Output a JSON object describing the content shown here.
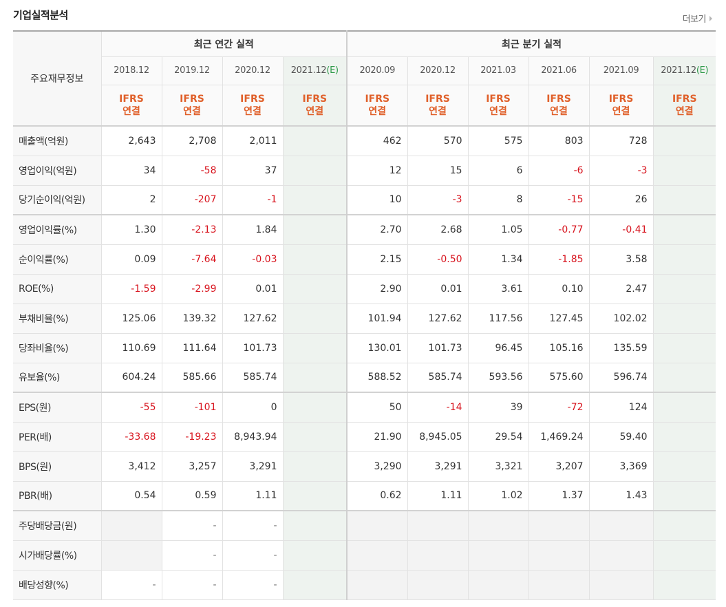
{
  "header": {
    "title": "기업실적분석",
    "more_label": "더보기"
  },
  "table": {
    "row_header": "주요재무정보",
    "groups": {
      "annual": "최근 연간 실적",
      "quarterly": "최근 분기 실적"
    },
    "annual_periods": [
      "2018.12",
      "2019.12",
      "2020.12",
      "2021.12"
    ],
    "annual_estimate_mark": "(E)",
    "quarter_periods": [
      "2020.09",
      "2020.12",
      "2021.03",
      "2021.06",
      "2021.09",
      "2021.12"
    ],
    "quarter_estimate_mark": "(E)",
    "basis_line1": "IFRS",
    "basis_line2": "연결",
    "rows": [
      {
        "label": "매출액(억원)",
        "annual": [
          "2,643",
          "2,708",
          "2,011",
          ""
        ],
        "quarter": [
          "462",
          "570",
          "575",
          "803",
          "728",
          ""
        ]
      },
      {
        "label": "영업이익(억원)",
        "annual": [
          "34",
          "-58",
          "37",
          ""
        ],
        "quarter": [
          "12",
          "15",
          "6",
          "-6",
          "-3",
          ""
        ]
      },
      {
        "label": "당기순이익(억원)",
        "annual": [
          "2",
          "-207",
          "-1",
          ""
        ],
        "quarter": [
          "10",
          "-3",
          "8",
          "-15",
          "26",
          ""
        ]
      },
      {
        "label": "영업이익률(%)",
        "annual": [
          "1.30",
          "-2.13",
          "1.84",
          ""
        ],
        "quarter": [
          "2.70",
          "2.68",
          "1.05",
          "-0.77",
          "-0.41",
          ""
        ]
      },
      {
        "label": "순이익률(%)",
        "annual": [
          "0.09",
          "-7.64",
          "-0.03",
          ""
        ],
        "quarter": [
          "2.15",
          "-0.50",
          "1.34",
          "-1.85",
          "3.58",
          ""
        ]
      },
      {
        "label": "ROE(%)",
        "annual": [
          "-1.59",
          "-2.99",
          "0.01",
          ""
        ],
        "quarter": [
          "2.90",
          "0.01",
          "3.61",
          "0.10",
          "2.47",
          ""
        ]
      },
      {
        "label": "부채비율(%)",
        "annual": [
          "125.06",
          "139.32",
          "127.62",
          ""
        ],
        "quarter": [
          "101.94",
          "127.62",
          "117.56",
          "127.45",
          "102.02",
          ""
        ]
      },
      {
        "label": "당좌비율(%)",
        "annual": [
          "110.69",
          "111.64",
          "101.73",
          ""
        ],
        "quarter": [
          "130.01",
          "101.73",
          "96.45",
          "105.16",
          "135.59",
          ""
        ]
      },
      {
        "label": "유보율(%)",
        "annual": [
          "604.24",
          "585.66",
          "585.74",
          ""
        ],
        "quarter": [
          "588.52",
          "585.74",
          "593.56",
          "575.60",
          "596.74",
          ""
        ]
      },
      {
        "label": "EPS(원)",
        "annual": [
          "-55",
          "-101",
          "0",
          ""
        ],
        "quarter": [
          "50",
          "-14",
          "39",
          "-72",
          "124",
          ""
        ]
      },
      {
        "label": "PER(배)",
        "annual": [
          "-33.68",
          "-19.23",
          "8,943.94",
          ""
        ],
        "quarter": [
          "21.90",
          "8,945.05",
          "29.54",
          "1,469.24",
          "59.40",
          ""
        ]
      },
      {
        "label": "BPS(원)",
        "annual": [
          "3,412",
          "3,257",
          "3,291",
          ""
        ],
        "quarter": [
          "3,290",
          "3,291",
          "3,321",
          "3,207",
          "3,369",
          ""
        ]
      },
      {
        "label": "PBR(배)",
        "annual": [
          "0.54",
          "0.59",
          "1.11",
          ""
        ],
        "quarter": [
          "0.62",
          "1.11",
          "1.02",
          "1.37",
          "1.43",
          ""
        ]
      },
      {
        "label": "주당배당금(원)",
        "annual": [
          "",
          "-",
          "-",
          ""
        ],
        "quarter": [
          "",
          "",
          "",
          "",
          "",
          ""
        ]
      },
      {
        "label": "시가배당률(%)",
        "annual": [
          "",
          "-",
          "-",
          ""
        ],
        "quarter": [
          "",
          "",
          "",
          "",
          "",
          ""
        ]
      },
      {
        "label": "배당성향(%)",
        "annual": [
          "-",
          "-",
          "-",
          ""
        ],
        "quarter": [
          "",
          "",
          "",
          "",
          "",
          ""
        ]
      }
    ]
  },
  "colors": {
    "negative": "#d8141e",
    "basis": "#e0602a",
    "estimate_mark": "#2e9a49",
    "estimate_bg": "#eef3ef"
  }
}
